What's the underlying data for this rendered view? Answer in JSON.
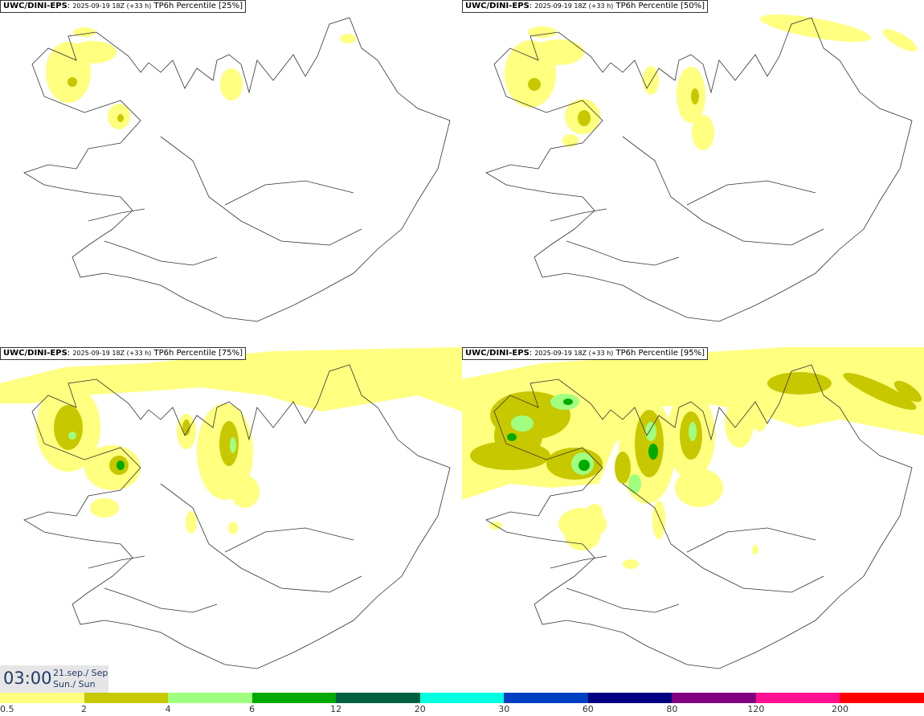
{
  "panels": [
    {
      "model": "UWC/DINI-EPS",
      "run": "2025-09-19 18Z (+33 h)",
      "field": "TP6h Percentile [25%]",
      "percentile": 25
    },
    {
      "model": "UWC/DINI-EPS",
      "run": "2025-09-19 18Z (+33 h)",
      "field": "TP6h Percentile [50%]",
      "percentile": 50
    },
    {
      "model": "UWC/DINI-EPS",
      "run": "2025-09-19 18Z (+33 h)",
      "field": "TP6h Percentile [75%]",
      "percentile": 75
    },
    {
      "model": "UWC/DINI-EPS",
      "run": "2025-09-19 18Z (+33 h)",
      "field": "TP6h Percentile [95%]",
      "percentile": 95
    }
  ],
  "valid_time": {
    "time": "03:00",
    "date_line1": "21.sep./ Sep",
    "date_line2": "Sun./ Sun"
  },
  "colorbar": {
    "labels": [
      "0.5",
      "2",
      "4",
      "6",
      "12",
      "20",
      "30",
      "60",
      "80",
      "120",
      "200"
    ],
    "colors": [
      "#ffff80",
      "#c8c800",
      "#a0ff80",
      "#00aa00",
      "#006040",
      "#00ffe0",
      "#0040c0",
      "#000080",
      "#800080",
      "#ff1090",
      "#ff0000"
    ]
  }
}
